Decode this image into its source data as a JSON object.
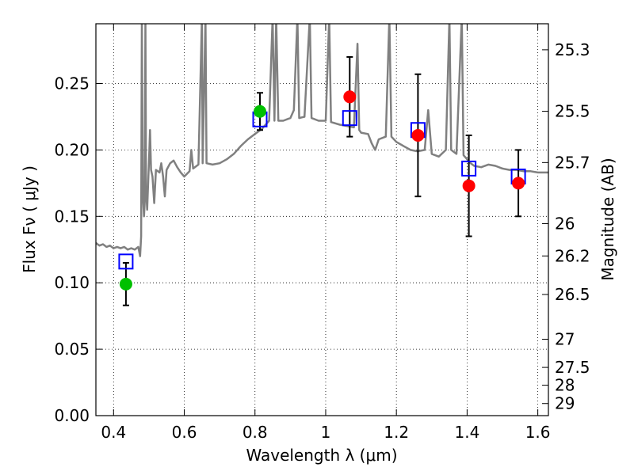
{
  "chart_data": {
    "type": "scatter",
    "xlabel": "Wavelength  λ (μm)",
    "ylabel": "Flux  Fν  ( μJy )",
    "y2label": "Magnitude (AB)",
    "xlim": [
      0.35,
      1.63
    ],
    "ylim": [
      0.0,
      0.295
    ],
    "grid": true,
    "x_ticks": [
      0.4,
      0.6,
      0.8,
      1.0,
      1.2,
      1.4,
      1.6
    ],
    "x_tick_labels": [
      "0.4",
      "0.6",
      "0.8",
      "1",
      "1.2",
      "1.4",
      "1.6"
    ],
    "y_ticks": [
      0.0,
      0.05,
      0.1,
      0.15,
      0.2,
      0.25
    ],
    "y_tick_labels": [
      "0.00",
      "0.05",
      "0.10",
      "0.15",
      "0.20",
      "0.25"
    ],
    "magnitude_ticks": [
      {
        "label": "25.3",
        "flux": 0.2754
      },
      {
        "label": "25.5",
        "flux": 0.2291
      },
      {
        "label": "25.7",
        "flux": 0.1905
      },
      {
        "label": "26",
        "flux": 0.1445
      },
      {
        "label": "26.2",
        "flux": 0.1202
      },
      {
        "label": "26.5",
        "flux": 0.0912
      },
      {
        "label": "27",
        "flux": 0.0575
      },
      {
        "label": "27.5",
        "flux": 0.0363
      },
      {
        "label": "28",
        "flux": 0.0229
      },
      {
        "label": "29",
        "flux": 0.0091
      }
    ],
    "colors": {
      "sed": "#808080",
      "model_band": "#0000ff",
      "obs_green": "#00c000",
      "obs_red": "#ff0000",
      "errorbar": "#000000",
      "grid": "#000000"
    },
    "model_band_points": [
      {
        "x": 0.435,
        "y": 0.116
      },
      {
        "x": 0.814,
        "y": 0.223
      },
      {
        "x": 1.068,
        "y": 0.224
      },
      {
        "x": 1.261,
        "y": 0.215
      },
      {
        "x": 1.405,
        "y": 0.186
      },
      {
        "x": 1.545,
        "y": 0.18
      }
    ],
    "observed_green": [
      {
        "x": 0.435,
        "y": 0.099,
        "err_low": 0.016,
        "err_high": 0.016
      },
      {
        "x": 0.814,
        "y": 0.229,
        "err_low": 0.014,
        "err_high": 0.014
      }
    ],
    "observed_red": [
      {
        "x": 1.068,
        "y": 0.24,
        "err_low": 0.03,
        "err_high": 0.03
      },
      {
        "x": 1.261,
        "y": 0.211,
        "err_low": 0.046,
        "err_high": 0.046
      },
      {
        "x": 1.405,
        "y": 0.173,
        "err_low": 0.038,
        "err_high": 0.038
      },
      {
        "x": 1.545,
        "y": 0.175,
        "err_low": 0.025,
        "err_high": 0.025
      }
    ],
    "sed_points": [
      [
        0.35,
        0.13
      ],
      [
        0.36,
        0.128
      ],
      [
        0.37,
        0.129
      ],
      [
        0.38,
        0.127
      ],
      [
        0.39,
        0.128
      ],
      [
        0.4,
        0.126
      ],
      [
        0.41,
        0.127
      ],
      [
        0.42,
        0.126
      ],
      [
        0.43,
        0.127
      ],
      [
        0.44,
        0.125
      ],
      [
        0.45,
        0.126
      ],
      [
        0.46,
        0.125
      ],
      [
        0.47,
        0.127
      ],
      [
        0.475,
        0.12
      ],
      [
        0.478,
        0.135
      ],
      [
        0.48,
        0.3
      ],
      [
        0.483,
        0.165
      ],
      [
        0.486,
        0.15
      ],
      [
        0.488,
        0.16
      ],
      [
        0.49,
        0.3
      ],
      [
        0.492,
        0.17
      ],
      [
        0.495,
        0.155
      ],
      [
        0.498,
        0.176
      ],
      [
        0.5,
        0.19
      ],
      [
        0.503,
        0.215
      ],
      [
        0.506,
        0.185
      ],
      [
        0.51,
        0.18
      ],
      [
        0.515,
        0.16
      ],
      [
        0.52,
        0.185
      ],
      [
        0.53,
        0.183
      ],
      [
        0.535,
        0.19
      ],
      [
        0.54,
        0.18
      ],
      [
        0.545,
        0.165
      ],
      [
        0.55,
        0.185
      ],
      [
        0.56,
        0.19
      ],
      [
        0.57,
        0.192
      ],
      [
        0.58,
        0.187
      ],
      [
        0.59,
        0.183
      ],
      [
        0.6,
        0.18
      ],
      [
        0.615,
        0.184
      ],
      [
        0.62,
        0.2
      ],
      [
        0.625,
        0.186
      ],
      [
        0.64,
        0.189
      ],
      [
        0.65,
        0.3
      ],
      [
        0.652,
        0.19
      ],
      [
        0.66,
        0.3
      ],
      [
        0.663,
        0.19
      ],
      [
        0.68,
        0.189
      ],
      [
        0.7,
        0.19
      ],
      [
        0.72,
        0.193
      ],
      [
        0.74,
        0.197
      ],
      [
        0.76,
        0.203
      ],
      [
        0.78,
        0.208
      ],
      [
        0.8,
        0.212
      ],
      [
        0.82,
        0.216
      ],
      [
        0.84,
        0.222
      ],
      [
        0.85,
        0.3
      ],
      [
        0.855,
        0.222
      ],
      [
        0.86,
        0.3
      ],
      [
        0.866,
        0.222
      ],
      [
        0.88,
        0.222
      ],
      [
        0.9,
        0.224
      ],
      [
        0.91,
        0.23
      ],
      [
        0.92,
        0.3
      ],
      [
        0.925,
        0.224
      ],
      [
        0.94,
        0.225
      ],
      [
        0.955,
        0.3
      ],
      [
        0.96,
        0.224
      ],
      [
        0.98,
        0.222
      ],
      [
        1.0,
        0.222
      ],
      [
        1.01,
        0.3
      ],
      [
        1.015,
        0.221
      ],
      [
        1.04,
        0.219
      ],
      [
        1.06,
        0.218
      ],
      [
        1.08,
        0.217
      ],
      [
        1.09,
        0.28
      ],
      [
        1.095,
        0.215
      ],
      [
        1.1,
        0.213
      ],
      [
        1.12,
        0.212
      ],
      [
        1.13,
        0.205
      ],
      [
        1.14,
        0.2
      ],
      [
        1.15,
        0.208
      ],
      [
        1.17,
        0.21
      ],
      [
        1.18,
        0.3
      ],
      [
        1.186,
        0.21
      ],
      [
        1.2,
        0.206
      ],
      [
        1.22,
        0.203
      ],
      [
        1.24,
        0.2
      ],
      [
        1.26,
        0.199
      ],
      [
        1.28,
        0.2
      ],
      [
        1.29,
        0.23
      ],
      [
        1.3,
        0.197
      ],
      [
        1.32,
        0.195
      ],
      [
        1.34,
        0.2
      ],
      [
        1.35,
        0.3
      ],
      [
        1.355,
        0.2
      ],
      [
        1.37,
        0.197
      ],
      [
        1.385,
        0.3
      ],
      [
        1.39,
        0.196
      ],
      [
        1.4,
        0.193
      ],
      [
        1.41,
        0.19
      ],
      [
        1.42,
        0.188
      ],
      [
        1.44,
        0.187
      ],
      [
        1.46,
        0.189
      ],
      [
        1.48,
        0.188
      ],
      [
        1.5,
        0.186
      ],
      [
        1.52,
        0.185
      ],
      [
        1.54,
        0.185
      ],
      [
        1.56,
        0.184
      ],
      [
        1.58,
        0.184
      ],
      [
        1.6,
        0.183
      ],
      [
        1.63,
        0.183
      ]
    ]
  }
}
